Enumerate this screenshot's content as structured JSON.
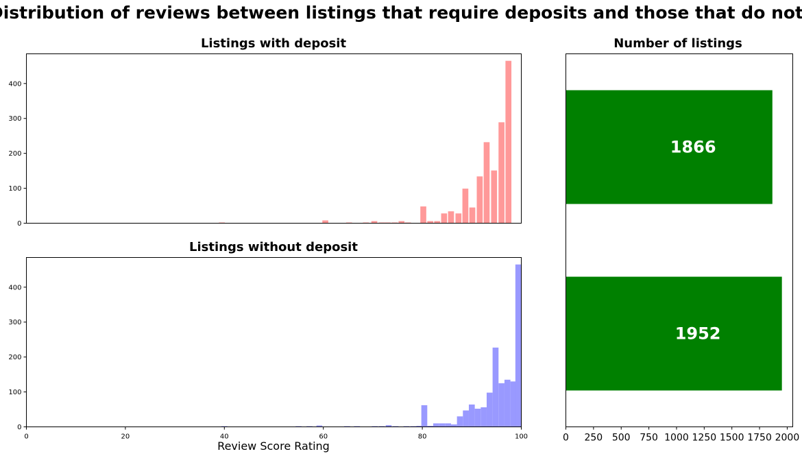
{
  "title": "Distribution of reviews between listings that require deposits and those that do not",
  "chart_data": [
    {
      "type": "bar",
      "subtype": "histogram",
      "title": "Listings with deposit",
      "color": "#ff9999",
      "xlim": [
        0,
        100
      ],
      "ylim": [
        0,
        485
      ],
      "yticks": [
        0,
        100,
        200,
        300,
        400
      ],
      "bin_width": 1.2,
      "bins": [
        {
          "x": 39.5,
          "y": 2
        },
        {
          "x": 60.4,
          "y": 8
        },
        {
          "x": 65.2,
          "y": 2
        },
        {
          "x": 68.6,
          "y": 2
        },
        {
          "x": 70.3,
          "y": 6
        },
        {
          "x": 71.8,
          "y": 2
        },
        {
          "x": 73.0,
          "y": 2
        },
        {
          "x": 74.4,
          "y": 2
        },
        {
          "x": 75.8,
          "y": 6
        },
        {
          "x": 77.1,
          "y": 2
        },
        {
          "x": 80.2,
          "y": 48
        },
        {
          "x": 81.6,
          "y": 6
        },
        {
          "x": 83.0,
          "y": 6
        },
        {
          "x": 84.4,
          "y": 28
        },
        {
          "x": 85.8,
          "y": 34
        },
        {
          "x": 87.3,
          "y": 28
        },
        {
          "x": 88.7,
          "y": 99
        },
        {
          "x": 90.1,
          "y": 45
        },
        {
          "x": 91.6,
          "y": 134
        },
        {
          "x": 93.0,
          "y": 232
        },
        {
          "x": 94.5,
          "y": 151
        },
        {
          "x": 96.0,
          "y": 289
        },
        {
          "x": 97.4,
          "y": 465
        }
      ]
    },
    {
      "type": "bar",
      "subtype": "histogram",
      "title": "Listings without deposit",
      "color": "#9999ff",
      "xlabel": "Review Score Rating",
      "xlim": [
        0,
        100
      ],
      "ylim": [
        0,
        485
      ],
      "xticks": [
        0,
        20,
        40,
        60,
        80,
        100
      ],
      "yticks": [
        0,
        100,
        200,
        300,
        400
      ],
      "bin_width": 1.2,
      "bins": [
        {
          "x": 40.0,
          "y": 2
        },
        {
          "x": 55.0,
          "y": 2
        },
        {
          "x": 57.2,
          "y": 2
        },
        {
          "x": 59.2,
          "y": 4
        },
        {
          "x": 64.8,
          "y": 2
        },
        {
          "x": 66.8,
          "y": 2
        },
        {
          "x": 70.4,
          "y": 2
        },
        {
          "x": 71.8,
          "y": 2
        },
        {
          "x": 73.2,
          "y": 5
        },
        {
          "x": 74.6,
          "y": 2
        },
        {
          "x": 76.8,
          "y": 2
        },
        {
          "x": 78.2,
          "y": 2
        },
        {
          "x": 79.4,
          "y": 3
        },
        {
          "x": 80.4,
          "y": 62
        },
        {
          "x": 81.6,
          "y": 3
        },
        {
          "x": 82.8,
          "y": 10
        },
        {
          "x": 84.0,
          "y": 10
        },
        {
          "x": 85.2,
          "y": 10
        },
        {
          "x": 86.4,
          "y": 7
        },
        {
          "x": 87.6,
          "y": 30
        },
        {
          "x": 88.8,
          "y": 47
        },
        {
          "x": 90.0,
          "y": 64
        },
        {
          "x": 91.2,
          "y": 52
        },
        {
          "x": 92.4,
          "y": 56
        },
        {
          "x": 93.6,
          "y": 98
        },
        {
          "x": 94.8,
          "y": 227
        },
        {
          "x": 96.0,
          "y": 125
        },
        {
          "x": 97.2,
          "y": 135
        },
        {
          "x": 98.4,
          "y": 130
        },
        {
          "x": 99.4,
          "y": 465
        }
      ]
    },
    {
      "type": "bar",
      "orientation": "horizontal",
      "title": "Number of listings",
      "color": "#008000",
      "label_color": "#ffffff",
      "xlim": [
        0,
        2050
      ],
      "xticks": [
        0,
        250,
        500,
        750,
        1000,
        1250,
        1500,
        1750,
        2000
      ],
      "values": [
        1866,
        1952
      ],
      "value_labels": [
        "1866",
        "1952"
      ]
    }
  ]
}
